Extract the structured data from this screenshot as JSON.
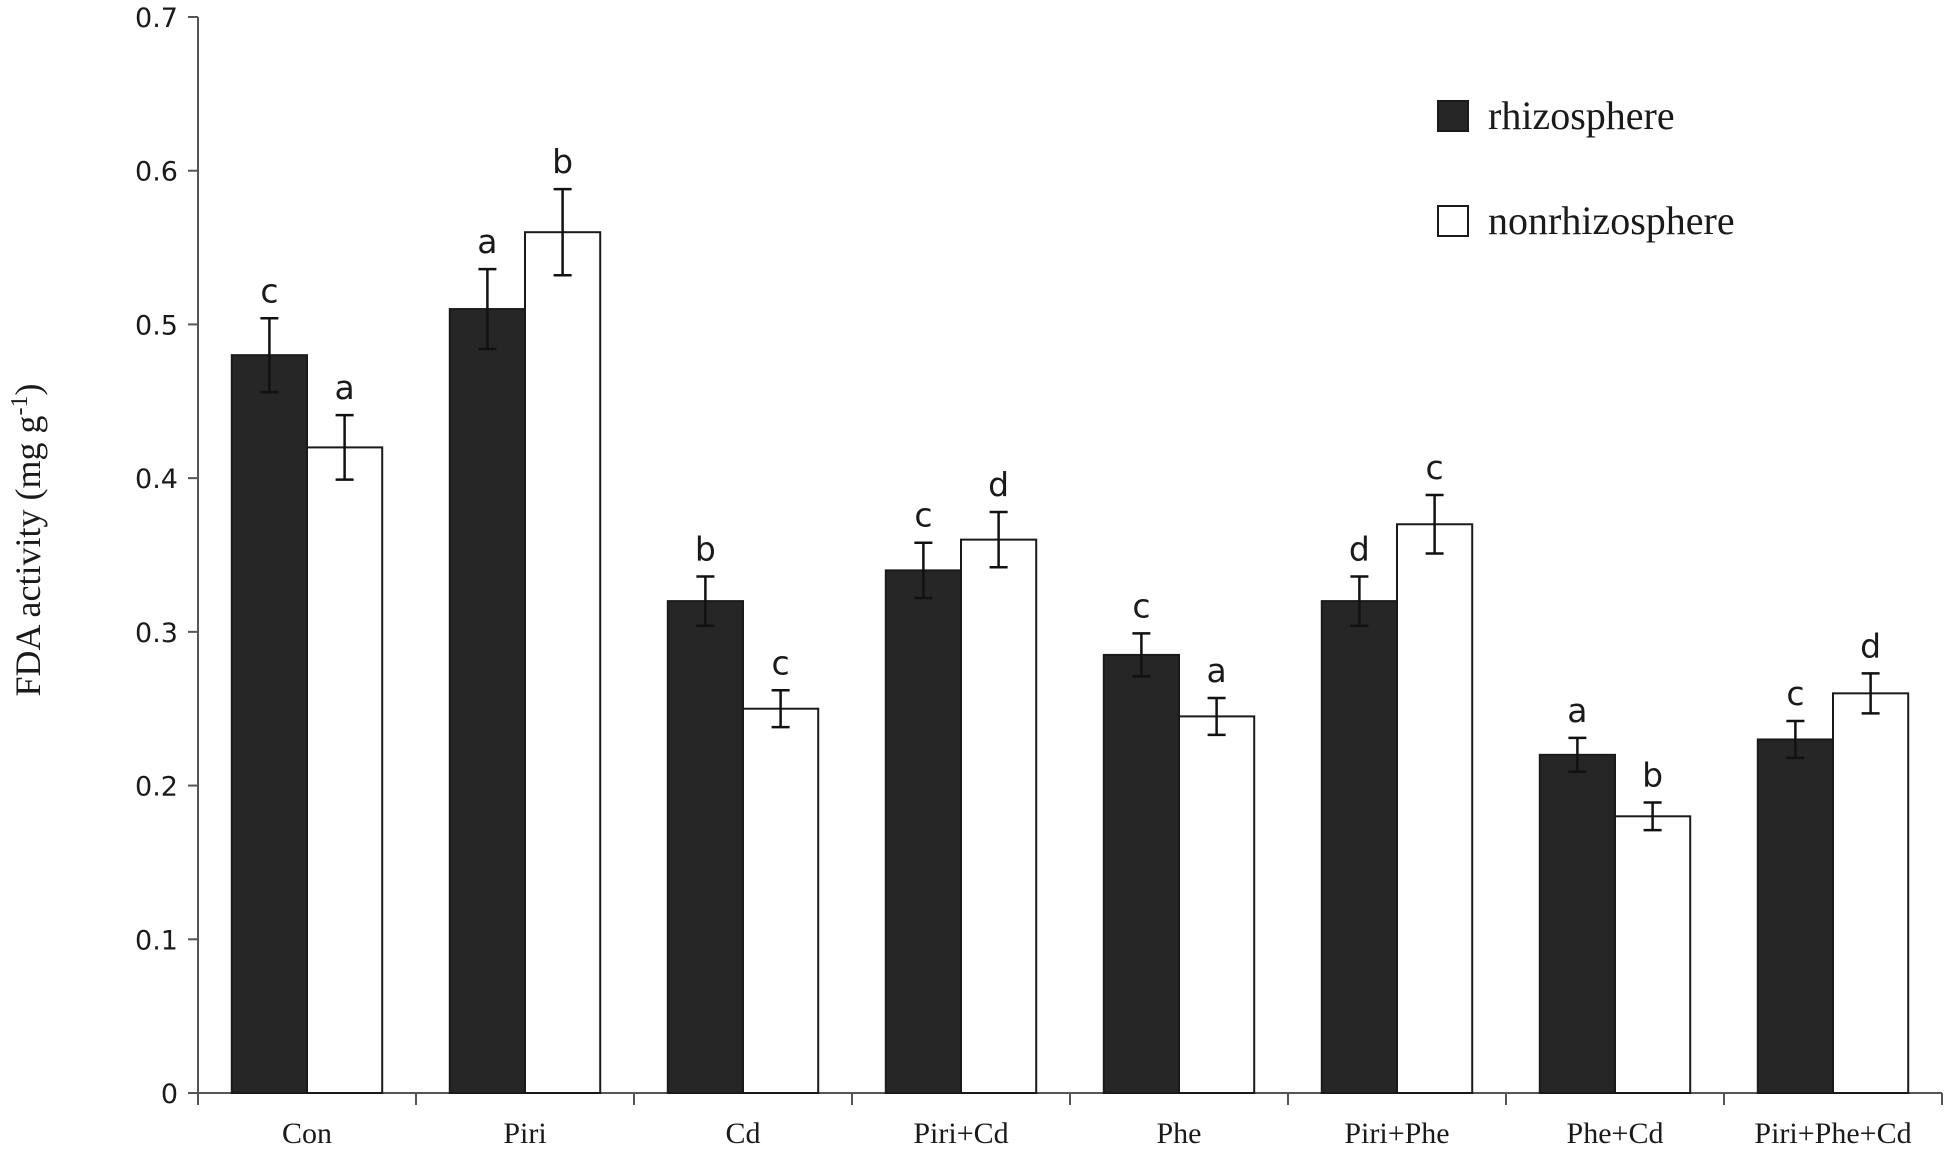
{
  "chart_data": {
    "type": "bar",
    "title": "",
    "xlabel": "",
    "ylabel": "FDA activity (mg g",
    "ylabel_sup": "-1",
    "ylabel_close": ")",
    "ylim": [
      0,
      0.7
    ],
    "yticks": [
      0,
      0.1,
      0.2,
      0.3,
      0.4,
      0.5,
      0.6,
      0.7
    ],
    "ytick_labels": [
      "0",
      "0.1",
      "0.2",
      "0.3",
      "0.4",
      "0.5",
      "0.6",
      "0.7"
    ],
    "categories": [
      "Con",
      "Piri",
      "Cd",
      "Piri+Cd",
      "Phe",
      "Piri+Phe",
      "Phe+Cd",
      "Piri+Phe+Cd"
    ],
    "legend_position": "top-right",
    "series": [
      {
        "name": "rhizosphere",
        "color": "#262626",
        "values": [
          0.48,
          0.51,
          0.32,
          0.34,
          0.285,
          0.32,
          0.22,
          0.23
        ],
        "errors": [
          0.024,
          0.026,
          0.016,
          0.018,
          0.014,
          0.016,
          0.011,
          0.012
        ],
        "labels": [
          "c",
          "a",
          "b",
          "c",
          "c",
          "d",
          "a",
          "c"
        ]
      },
      {
        "name": "nonrhizosphere",
        "color": "#ffffff",
        "values": [
          0.42,
          0.56,
          0.25,
          0.36,
          0.245,
          0.37,
          0.18,
          0.26
        ],
        "errors": [
          0.021,
          0.028,
          0.012,
          0.018,
          0.012,
          0.019,
          0.009,
          0.013
        ],
        "labels": [
          "a",
          "b",
          "c",
          "d",
          "a",
          "c",
          "b",
          "d"
        ]
      }
    ]
  }
}
